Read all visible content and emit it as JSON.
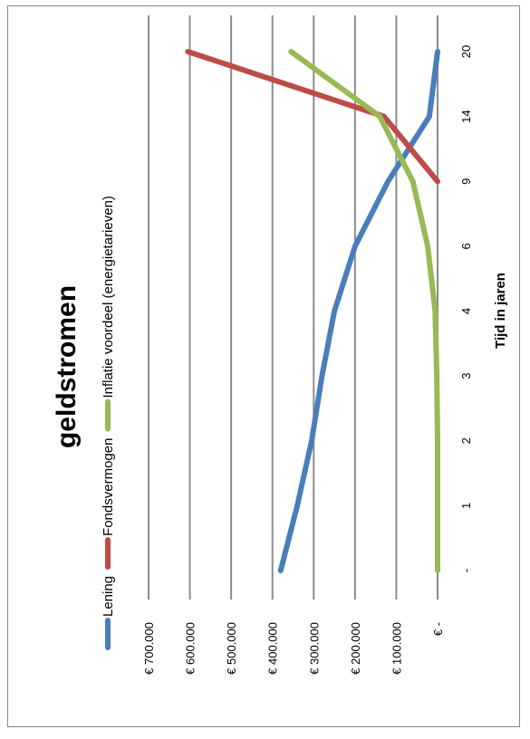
{
  "chart_data": {
    "type": "line",
    "title": "geldstromen",
    "xlabel": "Tijd in jaren",
    "ylabel": "",
    "categories": [
      "-",
      "1",
      "2",
      "3",
      "4",
      "6",
      "9",
      "14",
      "20"
    ],
    "y_ticks": [
      "€ -",
      "€ 100.000",
      "€ 200.000",
      "€ 300.000",
      "€ 400.000",
      "€ 500.000",
      "€ 600.000",
      "€ 700.000"
    ],
    "ylim": [
      0,
      700000
    ],
    "grid": true,
    "legend_position": "top",
    "series": [
      {
        "name": "Lening",
        "color": "#4a7ebb",
        "values": [
          380000,
          340000,
          305000,
          280000,
          250000,
          200000,
          120000,
          20000,
          0
        ]
      },
      {
        "name": "Fondsvermogen",
        "color": "#be4b48",
        "values": [
          null,
          null,
          null,
          null,
          null,
          null,
          0,
          130000,
          605000
        ]
      },
      {
        "name": "Inflatie voordeel (energietarieven)",
        "color": "#98b954",
        "values": [
          0,
          0,
          0,
          2000,
          6000,
          24000,
          60000,
          140000,
          355000
        ]
      }
    ]
  }
}
